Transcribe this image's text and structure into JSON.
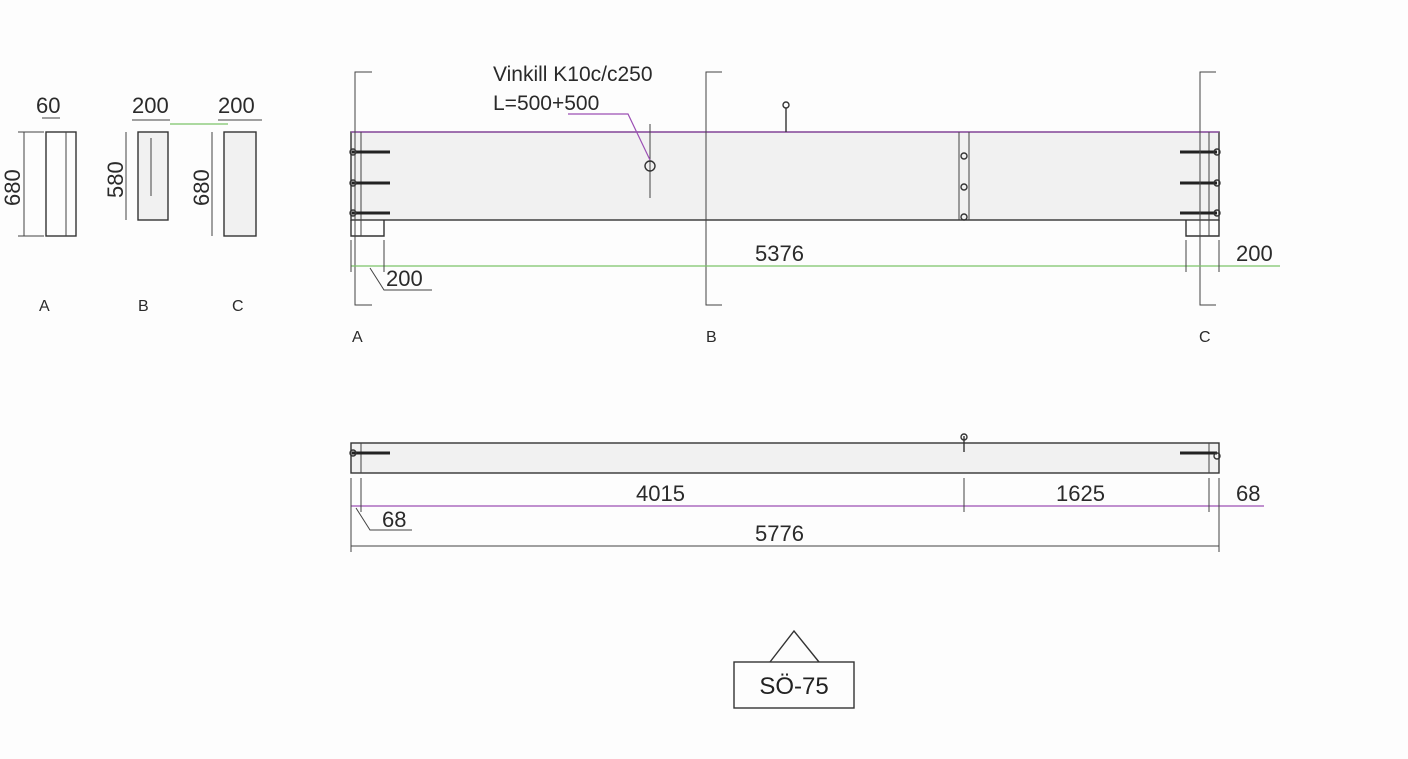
{
  "sections": {
    "A": {
      "label": "A",
      "width": "60",
      "height": "680"
    },
    "B": {
      "label": "B",
      "width": "200",
      "height": "580"
    },
    "C": {
      "label": "C",
      "width": "200",
      "height": "680"
    }
  },
  "elevation": {
    "annotation_line1": "Vinkill K10c/c250",
    "annotation_line2": "L=500+500",
    "span": "5376",
    "end_left": "200",
    "end_right": "200",
    "cut_labels": [
      "A",
      "B",
      "C"
    ]
  },
  "plan": {
    "seg1": "4015",
    "seg2": "1625",
    "end_left": "68",
    "end_right": "68",
    "total": "5776"
  },
  "title_block": {
    "mark": "SÖ-75"
  }
}
